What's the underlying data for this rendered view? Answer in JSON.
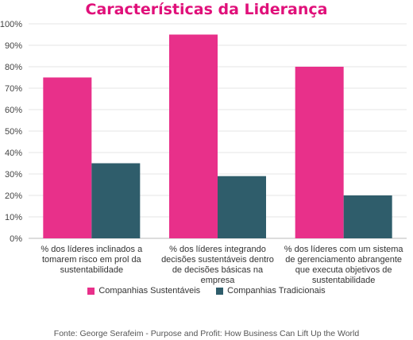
{
  "chart_data": {
    "type": "bar",
    "title": "Características da Liderança",
    "categories": [
      "% dos líderes inclinados a tomarem risco em prol da sustentabilidade",
      "% dos líderes integrando decisões sustentáveis dentro de decisões básicas na empresa",
      "% dos líderes com um sistema de gerenciamento abrangente que executa objetivos de sustentabilidade"
    ],
    "series": [
      {
        "name": "Companhias Sustentáveis",
        "values": [
          75,
          95,
          80
        ],
        "color": "#e8308a"
      },
      {
        "name": "Companhias Tradicionais",
        "values": [
          35,
          29,
          20
        ],
        "color": "#2f5d6b"
      }
    ],
    "yticks": [
      "0%",
      "10%",
      "20%",
      "30%",
      "40%",
      "50%",
      "60%",
      "70%",
      "80%",
      "90%",
      "100%"
    ],
    "ylim": [
      0,
      100
    ],
    "legend_position": "bottom",
    "grid": true,
    "title_color": "#e0107a",
    "source": "Fonte: George Serafeim - Purpose and Profit: How Business Can Lift Up the World"
  }
}
